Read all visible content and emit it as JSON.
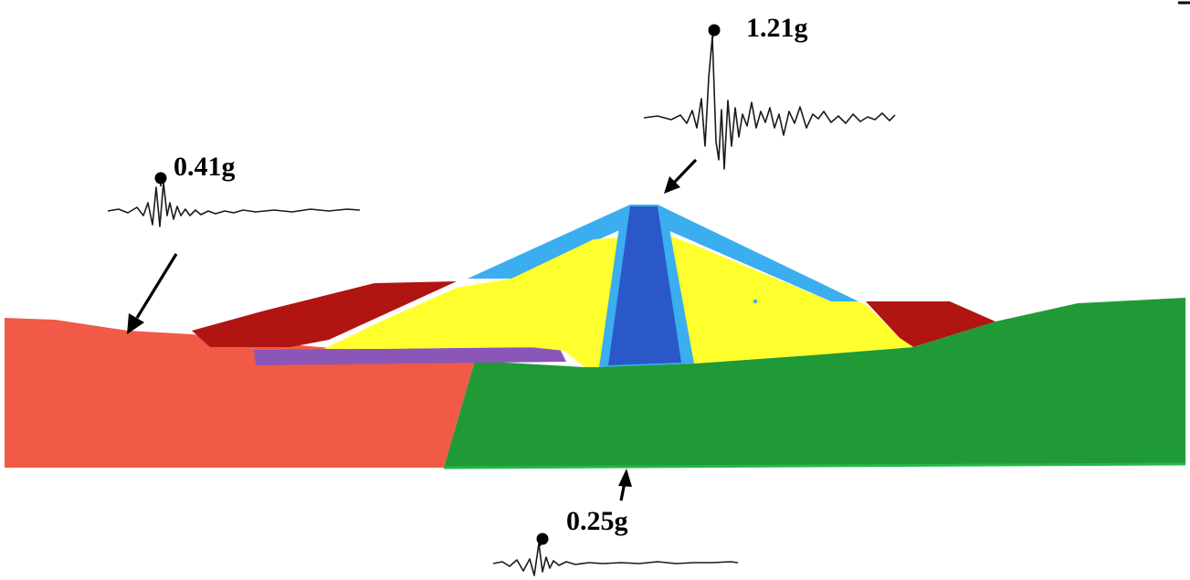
{
  "figure": {
    "colors": {
      "background": "#ffffff",
      "left_foundation": "#f05a46",
      "right_foundation": "#1f9a36",
      "foundation_edge": "#22b84a",
      "shell": "#ffff2e",
      "core": "#2a58c8",
      "core_filter": "#3aaeee",
      "crest_cover": "#3aaeee",
      "berm": "#b01512",
      "drain_blanket": "#8a56b8",
      "trace": "#1a1a1a",
      "arrow": "#000000"
    },
    "records": [
      {
        "id": "crest",
        "peak_label": "1.21g",
        "peak_value_g": 1.21
      },
      {
        "id": "left-abutment",
        "peak_label": "0.41g",
        "peak_value_g": 0.41
      },
      {
        "id": "base",
        "peak_label": "0.25g",
        "peak_value_g": 0.25
      }
    ]
  }
}
